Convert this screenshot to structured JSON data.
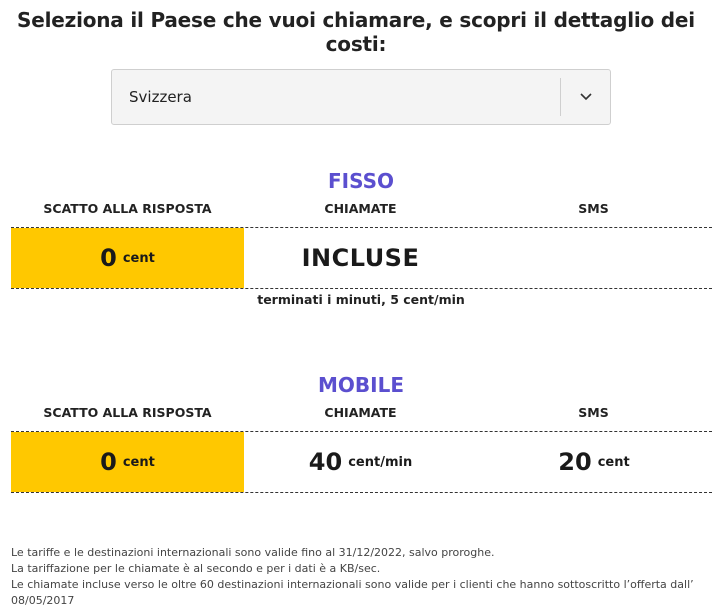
{
  "heading": "Seleziona il Paese che vuoi chiamare, e scopri il dettaglio dei costi:",
  "country_select": {
    "selected": "Svizzera",
    "icon": "chevron-down-icon"
  },
  "fisso": {
    "title": "FISSO",
    "headers": {
      "scatto": "SCATTO ALLA RISPOSTA",
      "chiamate": "CHIAMATE",
      "sms": "SMS"
    },
    "scatto": {
      "value": "0",
      "unit": "cent"
    },
    "chiamate": {
      "value": "INCLUSE"
    },
    "note": "terminati i minuti, 5 cent/min"
  },
  "mobile": {
    "title": "MOBILE",
    "headers": {
      "scatto": "SCATTO ALLA RISPOSTA",
      "chiamate": "CHIAMATE",
      "sms": "SMS"
    },
    "scatto": {
      "value": "0",
      "unit": "cent"
    },
    "chiamate": {
      "value": "40",
      "unit": "cent/min"
    },
    "sms": {
      "value": "20",
      "unit": "cent"
    }
  },
  "footer": {
    "line1": "Le tariffe e le destinazioni internazionali sono valide fino al 31/12/2022, salvo proroghe.",
    "line2": "La tariffazione per le chiamate è al secondo e per i dati è a KB/sec.",
    "line3": "Le chiamate incluse verso le oltre 60 destinazioni internazionali sono valide per i clienti che hanno sottoscritto l’offerta dall’",
    "line4": "08/05/2017"
  },
  "colors": {
    "accent": "#5b4fcf",
    "highlight": "#ffc800"
  }
}
